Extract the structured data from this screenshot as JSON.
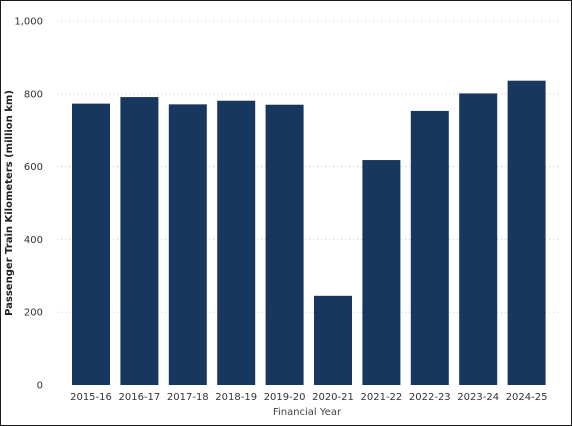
{
  "chart_data": {
    "type": "bar",
    "categories": [
      "2015-16",
      "2016-17",
      "2017-18",
      "2018-19",
      "2019-20",
      "2020-21",
      "2021-22",
      "2022-23",
      "2023-24",
      "2024-25"
    ],
    "values": [
      773,
      791,
      771,
      781,
      770,
      245,
      618,
      753,
      801,
      836
    ],
    "xlabel": "Financial Year",
    "ylabel": "Passenger Train Kilometers (million km)",
    "ylim": [
      0,
      1000
    ],
    "yticks": [
      0,
      200,
      400,
      600,
      800,
      1000
    ],
    "ytick_labels": [
      "0",
      "200",
      "400",
      "600",
      "800",
      "1,000"
    ],
    "grid": "horizontal dotted",
    "legend": "none",
    "bar_color": "#17375e"
  }
}
